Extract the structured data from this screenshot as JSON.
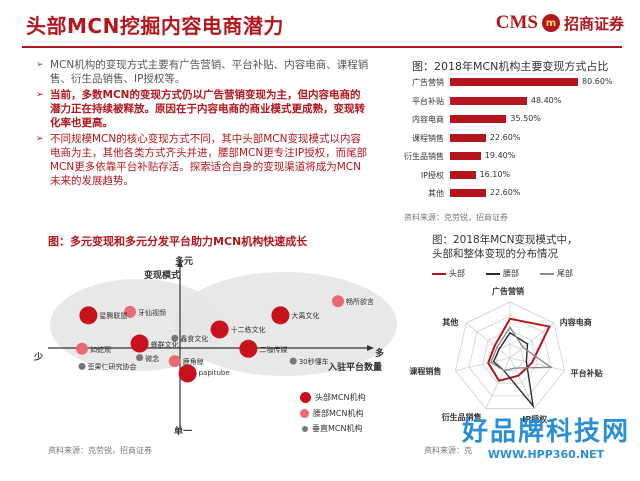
{
  "header": {
    "title": "头部MCN挖掘内容电商潜力",
    "logo_cms": "CMS",
    "logo_mark": "m",
    "logo_cn": "招商证券"
  },
  "bullets": [
    {
      "text": "MCN机构的变现方式主要有广告营销、平台补贴、内容电商、课程销售、衍生品销售、IP授权等。",
      "style": "gray"
    },
    {
      "text": "当前，多数MCN的变现方式仍以广告营销变现为主，但内容电商的潜力正在持续被释放。原因在于内容电商的商业模式更成熟，变现转化率也更高。",
      "style": "red"
    },
    {
      "text": "不同规模MCN的核心变现方式不同，其中头部MCN变现模式以内容电商为主，其他各类方式齐头并进，腰部MCN更专注IP授权，而尾部MCN更多依靠平台补贴存活。探索适合自身的变现渠道将成为MCN未来的发展趋势。",
      "style": "mixed"
    }
  ],
  "bullet_arrow": "➢",
  "bar_panel": {
    "title": "图：2018年MCN机构主要变现方式占比",
    "source": "资料来源：克劳锐，招商证券"
  },
  "bubble_panel": {
    "title": "图：多元变现和多元分发平台助力MCN机构快速成长",
    "source": "资料来源：克劳锐，招商证券",
    "y_top": "多元",
    "y_axis": "变现模式",
    "y_bottom": "单一",
    "x_left": "少",
    "x_right": "多",
    "x_axis": "入驻平台数量",
    "legend": [
      "头部MCN机构",
      "腰部MCN机构",
      "垂直MCN机构"
    ]
  },
  "radar_panel": {
    "title_line1": "图：2018年MCN变现模式中，",
    "title_line2": "头部和整体变现的分布情况",
    "source": "资料来源：克"
  },
  "watermark": {
    "big": "好品牌科技网",
    "url": "WWW.HPP360.NET"
  },
  "chart_data": [
    {
      "type": "bar",
      "title": "图：2018年MCN机构主要变现方式占比",
      "orientation": "horizontal",
      "categories": [
        "广告营销",
        "平台补贴",
        "内容电商",
        "课程销售",
        "衍生品销售",
        "IP授权",
        "其他"
      ],
      "values": [
        80.6,
        48.4,
        35.5,
        22.6,
        19.4,
        16.1,
        22.6
      ],
      "value_labels": [
        "80.60%",
        "48.40%",
        "35.50%",
        "22.60%",
        "19.40%",
        "16.10%",
        "22.60%"
      ],
      "xlim": [
        0,
        85
      ],
      "color": "#b3171d"
    },
    {
      "type": "scatter",
      "title": "图：多元变现和多元分发平台助力MCN机构快速成长",
      "xlabel": "入驻平台数量",
      "ylabel": "变现模式",
      "xlim": [
        0,
        10
      ],
      "ylim": [
        0,
        10
      ],
      "series": [
        {
          "name": "头部MCN机构",
          "color": "#c8101e",
          "points": [
            {
              "label": "星腾联盟",
              "x": 1.2,
              "y": 6.4
            },
            {
              "label": "蜂群文化",
              "x": 2.8,
              "y": 4.8
            },
            {
              "label": "十二栋文化",
              "x": 5.3,
              "y": 5.6
            },
            {
              "label": "大禹文化",
              "x": 7.2,
              "y": 6.4
            },
            {
              "label": "二咖传媒",
              "x": 6.2,
              "y": 4.5
            },
            {
              "label": "papitube",
              "x": 4.3,
              "y": 3.1
            }
          ]
        },
        {
          "name": "腰部MCN机构",
          "color": "#e86b73",
          "points": [
            {
              "label": "牙仙视频",
              "x": 2.5,
              "y": 6.6
            },
            {
              "label": "畅所欲言",
              "x": 9.0,
              "y": 7.2
            },
            {
              "label": "如蛇观",
              "x": 1.0,
              "y": 4.5
            },
            {
              "label": "鹿角鲸",
              "x": 3.9,
              "y": 3.8
            }
          ]
        },
        {
          "name": "垂直MCN机构",
          "color": "#777777",
          "points": [
            {
              "label": "鑫食文化",
              "x": 3.9,
              "y": 5.1
            },
            {
              "label": "微念",
              "x": 2.8,
              "y": 4.0
            },
            {
              "label": "30秒懂车",
              "x": 7.6,
              "y": 3.8
            },
            {
              "label": "歪果仁研究协会",
              "x": 1.0,
              "y": 3.5
            }
          ]
        }
      ]
    },
    {
      "type": "radar",
      "title": "图：2018年MCN变现模式中，头部和整体变现的分布情况",
      "axes": [
        "广告营销",
        "内容电商",
        "平台补贴",
        "IP授权",
        "衍生品销售",
        "课程销售",
        "其他"
      ],
      "rmax": 1.0,
      "series": [
        {
          "name": "头部",
          "color": "#b3171d",
          "values": [
            0.7,
            0.9,
            0.4,
            0.35,
            0.45,
            0.4,
            0.35
          ]
        },
        {
          "name": "腰部",
          "color": "#2b2b2b",
          "values": [
            0.45,
            0.4,
            0.3,
            0.95,
            0.25,
            0.3,
            0.25
          ]
        },
        {
          "name": "尾部",
          "color": "#8a8a8a",
          "values": [
            0.55,
            0.3,
            0.75,
            0.2,
            0.25,
            0.35,
            0.3
          ]
        }
      ]
    }
  ]
}
